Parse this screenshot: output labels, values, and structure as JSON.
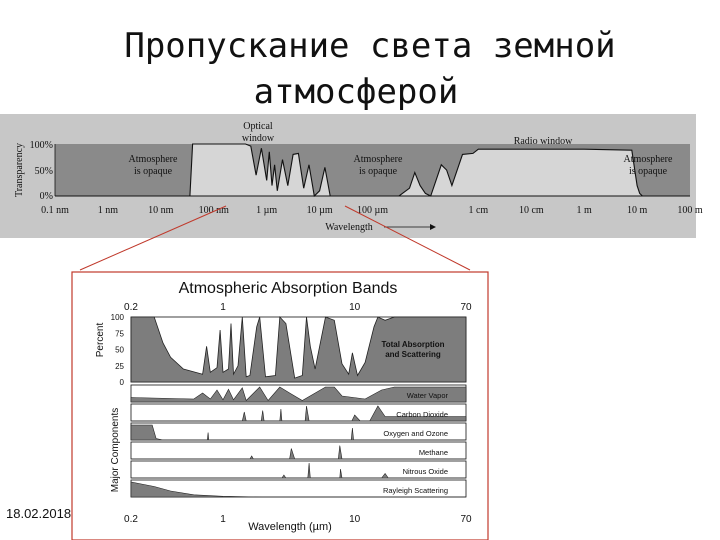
{
  "page": {
    "title_line1": "Пропускание света земной",
    "title_line2": "атмосферой",
    "date": "18.02.2018"
  },
  "colors": {
    "fill_dark": "#7d7d7d",
    "panel_bg": "#c7c7c7",
    "frame_red": "#c0392b"
  },
  "chart_data": [
    {
      "type": "area",
      "ylabel": "Transparency",
      "xlabel": "Wavelength",
      "yticks": [
        "100%",
        "50%",
        "0%"
      ],
      "xtick_labels": [
        "0.1 nm",
        "1 nm",
        "10 nm",
        "100 nm",
        "1 µm",
        "10 µm",
        "100 µm",
        "1 cm",
        "10 cm",
        "1 m",
        "10 m",
        "100 m"
      ],
      "annotations": [
        "Optical window",
        "Radio window",
        "Atmosphere is opaque",
        "Atmosphere is opaque",
        "Atmosphere is opaque"
      ],
      "series": [
        {
          "x_log10_m": [
            -10,
            -7.45,
            -7.4,
            -7.35,
            -7.3,
            -7.2,
            -7.1,
            -7.0,
            -6.8,
            -6.6,
            -6.4,
            -6.3,
            -6.2,
            -6.1,
            -6.0,
            -5.95,
            -5.9,
            -5.85,
            -5.8,
            -5.7,
            -5.6,
            -5.5,
            -5.4,
            -5.3,
            -5.2,
            -5.1,
            -5.0,
            -4.9,
            -4.8,
            -4.6,
            -4.5,
            -4.4,
            -4.3,
            -4.0,
            -3.5,
            -3.3,
            -3.2,
            -3.1,
            -3.0,
            -2.9,
            -2.8,
            -2.7,
            -2.6,
            -2.5,
            -2.3,
            -2.1,
            -2.0,
            -1.5,
            0,
            0.9,
            1.0,
            1.05,
            1.1,
            1.2,
            2
          ],
          "transparency_pct": [
            0,
            0,
            100,
            100,
            100,
            100,
            100,
            100,
            100,
            100,
            100,
            96,
            40,
            92,
            30,
            85,
            20,
            60,
            10,
            70,
            20,
            80,
            82,
            15,
            60,
            0,
            10,
            55,
            0,
            0,
            0,
            0,
            0,
            0,
            0,
            15,
            45,
            20,
            5,
            0,
            30,
            60,
            50,
            20,
            80,
            82,
            90,
            90,
            90,
            88,
            20,
            5,
            0,
            0,
            0
          ]
        }
      ]
    },
    {
      "type": "area",
      "title": "Atmospheric Absorption Bands",
      "xlabel": "Wavelength (µm)",
      "ylabel_top": "Percent",
      "ylabel_side": "Major Components",
      "xticks": [
        0.2,
        1,
        10,
        70
      ],
      "yticks": [
        0,
        25,
        50,
        75,
        100
      ],
      "xlim": [
        0.2,
        70
      ],
      "ylim": [
        0,
        100
      ],
      "series": [
        {
          "name": "Total Absorption and Scattering",
          "x": [
            0.2,
            0.3,
            0.35,
            0.4,
            0.5,
            0.7,
            0.75,
            0.8,
            0.9,
            0.95,
            1.0,
            1.1,
            1.15,
            1.2,
            1.3,
            1.4,
            1.5,
            1.6,
            1.8,
            1.9,
            2.1,
            2.5,
            2.7,
            3.0,
            3.5,
            4.0,
            4.3,
            4.6,
            5.0,
            6.0,
            7.0,
            8.0,
            9.0,
            9.6,
            10.5,
            12.0,
            14.0,
            15.0,
            17.0,
            20.0,
            30.0,
            70.0
          ],
          "values": [
            100,
            100,
            60,
            38,
            20,
            12,
            55,
            15,
            22,
            80,
            15,
            20,
            90,
            12,
            25,
            100,
            8,
            10,
            85,
            100,
            8,
            10,
            100,
            90,
            6,
            10,
            100,
            55,
            20,
            100,
            95,
            28,
            12,
            45,
            10,
            30,
            85,
            100,
            95,
            100,
            100,
            100
          ]
        },
        {
          "name": "Water Vapor"
        },
        {
          "name": "Carbon Dioxide"
        },
        {
          "name": "Oxygen and Ozone"
        },
        {
          "name": "Methane"
        },
        {
          "name": "Nitrous Oxide"
        },
        {
          "name": "Rayleigh Scattering"
        }
      ]
    }
  ]
}
